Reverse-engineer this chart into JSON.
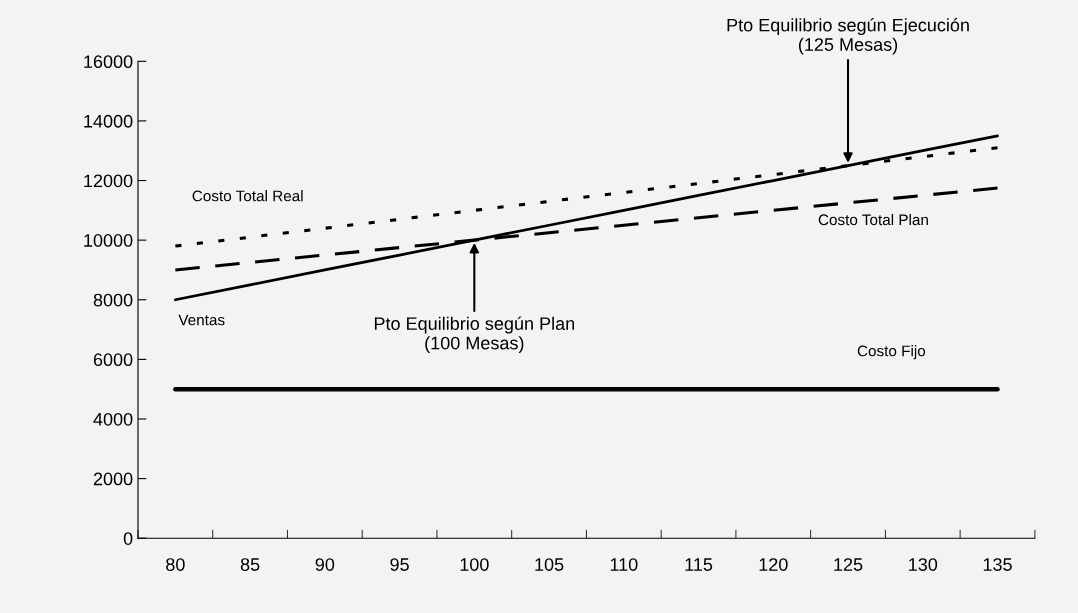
{
  "chart_data": {
    "type": "line",
    "categories": [
      "80",
      "85",
      "90",
      "95",
      "100",
      "105",
      "110",
      "115",
      "120",
      "125",
      "130",
      "135"
    ],
    "series": [
      {
        "name": "Costo Total Real",
        "color": "#000000",
        "line_style": "dotted",
        "values": [
          9800,
          10100,
          10400,
          10700,
          11000,
          11300,
          11600,
          11900,
          12200,
          12500,
          12800,
          13100
        ]
      },
      {
        "name": "Costo Total Plan",
        "color": "#000000",
        "line_style": "dashed",
        "values": [
          9000,
          9250,
          9500,
          9750,
          10000,
          10250,
          10500,
          10750,
          11000,
          11250,
          11500,
          11750
        ]
      },
      {
        "name": "Ventas",
        "color": "#000000",
        "line_style": "solid",
        "values": [
          8000,
          8500,
          9000,
          9500,
          10000,
          10500,
          11000,
          11500,
          12000,
          12500,
          13000,
          13500
        ]
      },
      {
        "name": "Costo Fijo",
        "color": "#000000",
        "line_style": "solid",
        "values": [
          5000,
          5000,
          5000,
          5000,
          5000,
          5000,
          5000,
          5000,
          5000,
          5000,
          5000,
          5000
        ]
      }
    ],
    "ylim": [
      0,
      16000
    ],
    "yticks": [
      0,
      2000,
      4000,
      6000,
      8000,
      10000,
      12000,
      14000,
      16000
    ],
    "grid": false,
    "legend": false,
    "marker": "none",
    "annotations": [
      {
        "text": "Pto Equilibrio según Plan\n(100 Mesas)",
        "x": "100",
        "y": 10000
      },
      {
        "text": "Pto Equilibrio según Ejecución\n(125 Mesas)",
        "x": "125",
        "y": 12500
      }
    ]
  }
}
